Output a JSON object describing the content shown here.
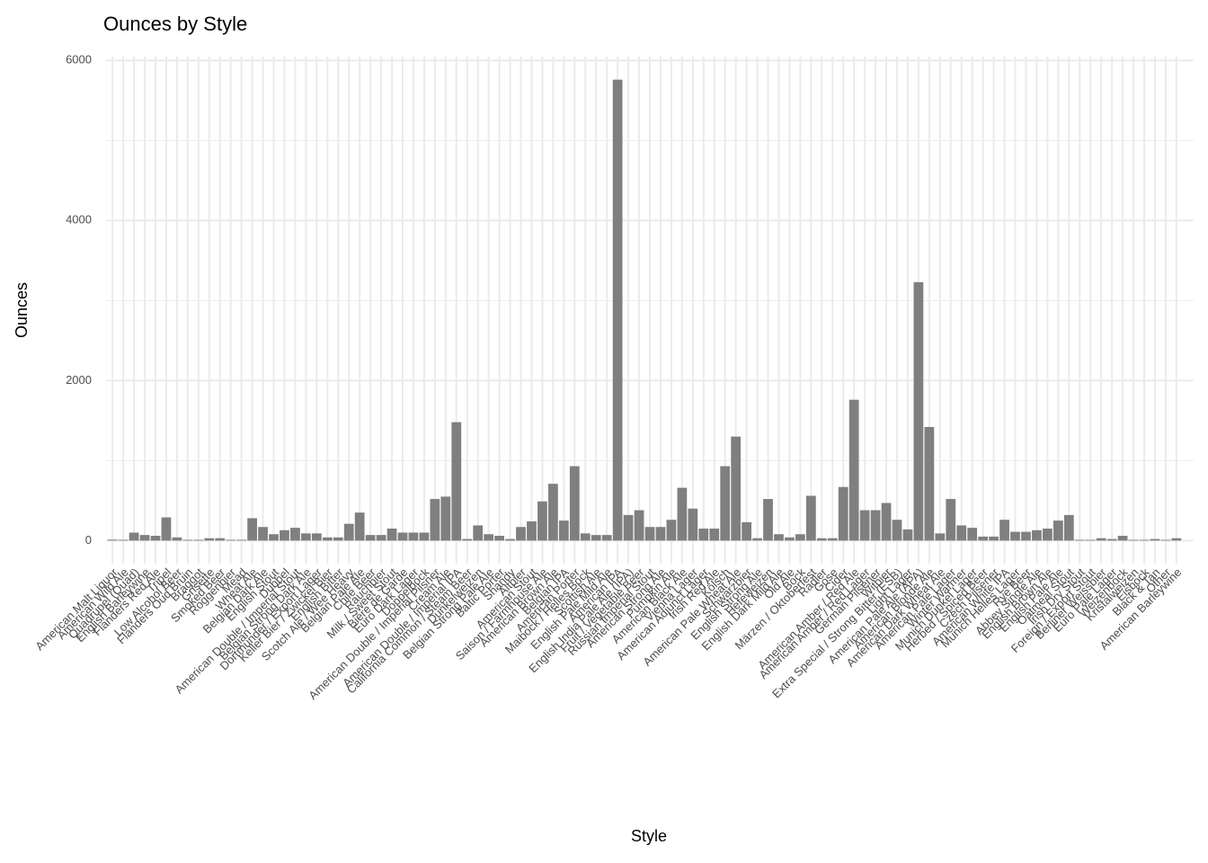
{
  "chart_data": {
    "type": "bar",
    "title": "Ounces by Style",
    "x_label": "Style",
    "y_label": "Ounces",
    "categories": [
      "American Malt Liquor",
      "American Wild Ale",
      "Quadrupel (Quad)",
      "English Barleywine",
      "Flanders Red Ale",
      "Tripel",
      "Low Alcohol Beer",
      "Flanders Oud Bruin",
      "Braggot",
      "Grisette",
      "Smoked Beer",
      "Roggenbier",
      "Mead",
      "Wheat Ale",
      "Belgian Dark Ale",
      "English Stout",
      "Dubbel",
      "American Double / Imperial Stout",
      "Belgian Strong Dark Ale",
      "Dortmunder / Export Lager",
      "Keller Bier / Zwickel Bier",
      "English Bitter",
      "Scotch Ale / Wee Heavy",
      "Belgian Pale Ale",
      "Chile Beer",
      "Rauchbier",
      "Milk / Sweet Stout",
      "Bière de Garde",
      "Euro Dark Lager",
      "Doppelbock",
      "American Double / Imperial Pilsner",
      "Cream Ale",
      "American Double / Imperial IPA",
      "California Common / Steam Beer",
      "Dunkelweizen",
      "Belgian Strong Pale Ale",
      "Baltic Porter",
      "Shandy",
      "Altbier",
      "American Stout",
      "Saison / Farmhouse Ale",
      "American Brown Ale",
      "Belgian IPA",
      "American Porter",
      "Maibock / Helles Bock",
      "Scottish Ale",
      "English Pale Mild Ale",
      "American IPA",
      "English India Pale Ale (IPA)",
      "Fruit / Vegetable Beer",
      "Russian Imperial Stout",
      "American Strong Ale",
      "Pumpkin Ale",
      "American Black Ale",
      "Vienna Lager",
      "American Adjunct Lager",
      "Irish Red Ale",
      "Kölsch",
      "American Pale Wheat Ale",
      "Schwarzbier",
      "English Strong Ale",
      "Hefeweizen",
      "English Dark Mild Ale",
      "Old Ale",
      "Bock",
      "Märzen / Oktoberfest",
      "Radler",
      "Gose",
      "Cider",
      "American Amber / Red Ale",
      "American Amber / Red Lager",
      "German Pilsener",
      "Witbier",
      "Extra Special / Strong Bitter (ESB)",
      "Light Lager",
      "American Pale Ale (APA)",
      "American Blonde Ale",
      "American Dark Wheat Ale",
      "American Pale Lager",
      "Winter Warmer",
      "Munich Dunkel Lager",
      "Herbed / Spiced Beer",
      "Czech Pilsener",
      "American White IPA",
      "Munich Helles Lager",
      "Rye Beer",
      "Abbey Single Ale",
      "English Brown Ale",
      "English Pale Ale",
      "Oatmeal Stout",
      "Irish Dry Stout",
      "Foreign / Export Stout",
      "Berliner Weissbier",
      "Euro Pale Lager",
      "Weizenbock",
      "Kristalweizen",
      "Eisbock",
      "Black & Tan",
      "Other",
      "American Barleywine"
    ],
    "values": [
      12,
      10,
      100,
      70,
      60,
      290,
      40,
      10,
      10,
      30,
      30,
      10,
      10,
      280,
      170,
      80,
      130,
      160,
      90,
      90,
      40,
      40,
      210,
      350,
      70,
      70,
      150,
      100,
      100,
      100,
      520,
      550,
      1480,
      20,
      190,
      80,
      60,
      20,
      170,
      240,
      490,
      710,
      250,
      930,
      90,
      70,
      70,
      5760,
      320,
      380,
      170,
      170,
      260,
      660,
      400,
      150,
      150,
      930,
      1300,
      230,
      30,
      520,
      80,
      40,
      80,
      560,
      30,
      30,
      670,
      1760,
      380,
      380,
      470,
      260,
      140,
      3230,
      1420,
      90,
      520,
      190,
      160,
      50,
      50,
      260,
      110,
      110,
      130,
      150,
      250,
      320,
      10,
      10,
      30,
      20,
      60,
      10,
      10,
      20,
      10,
      30
    ],
    "color": "#7f7f7f",
    "ylim": [
      -288,
      6048
    ],
    "yticks": [
      0,
      2000,
      4000,
      6000
    ],
    "grid": true
  }
}
